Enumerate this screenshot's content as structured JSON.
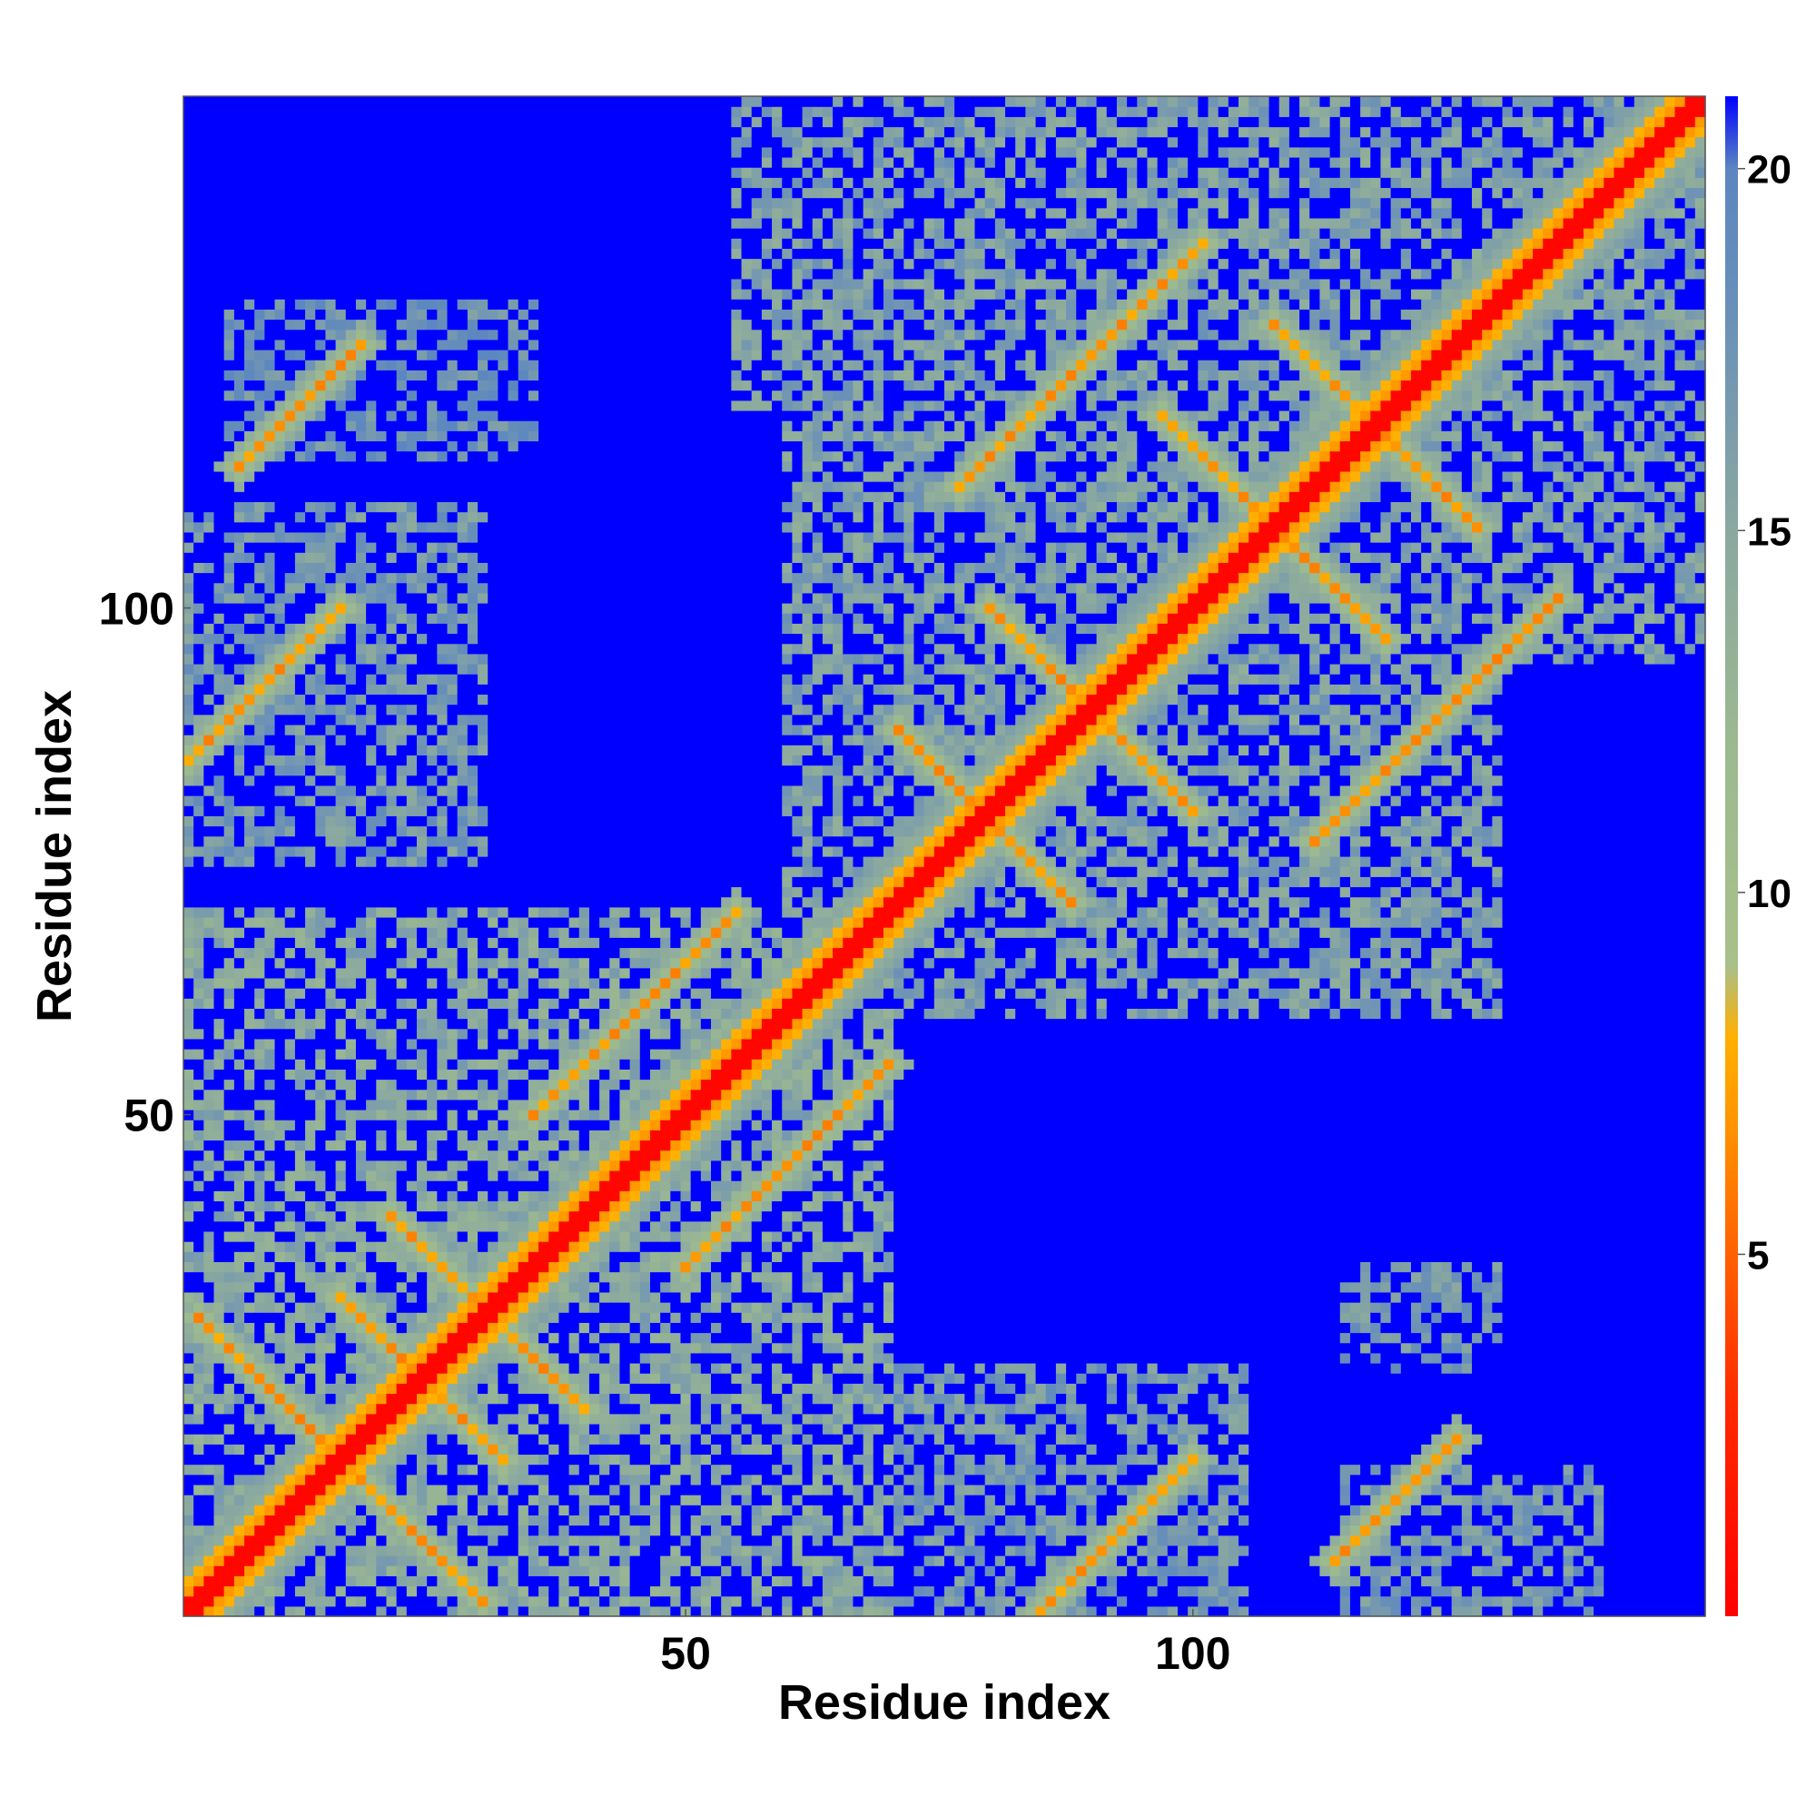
{
  "chart_data": {
    "type": "heatmap",
    "title": "",
    "xlabel": "Residue index",
    "ylabel": "Residue index",
    "xlim": [
      1,
      150
    ],
    "ylim": [
      1,
      150
    ],
    "x_ticks": [
      50,
      100
    ],
    "y_ticks": [
      50,
      100
    ],
    "colorbar": {
      "ticks": [
        5,
        10,
        15,
        20
      ],
      "range": [
        0,
        21
      ],
      "stops": [
        {
          "value": 0,
          "color": "#ff0000"
        },
        {
          "value": 3,
          "color": "#ff2a00"
        },
        {
          "value": 5,
          "color": "#ff6000"
        },
        {
          "value": 7,
          "color": "#ff9900"
        },
        {
          "value": 8,
          "color": "#ffb000"
        },
        {
          "value": 9,
          "color": "#a8c08a"
        },
        {
          "value": 12,
          "color": "#9cb990"
        },
        {
          "value": 15,
          "color": "#8aa8a0"
        },
        {
          "value": 18,
          "color": "#6a90b8"
        },
        {
          "value": 20,
          "color": "#5b86c0"
        },
        {
          "value": 21,
          "color": "#0000ff"
        }
      ]
    },
    "cap_value": 21,
    "description_free": true,
    "diagonal_band": {
      "zero_width": 1,
      "orange_width": 3,
      "green_width": 6
    },
    "contact_arms": [
      {
        "a": 27,
        "b": 34,
        "dir": "anti",
        "len": 6
      },
      {
        "a": 10,
        "b": 22,
        "dir": "anti",
        "len": 8
      },
      {
        "a": 22,
        "b": 26,
        "dir": "anti",
        "len": 6
      },
      {
        "a": 45,
        "b": 60,
        "dir": "parallel",
        "len": 10
      },
      {
        "a": 77,
        "b": 82,
        "dir": "anti",
        "len": 6
      },
      {
        "a": 86,
        "b": 94,
        "dir": "anti",
        "len": 6
      },
      {
        "a": 104,
        "b": 112,
        "dir": "anti",
        "len": 7
      },
      {
        "a": 114,
        "b": 122,
        "dir": "anti",
        "len": 6
      },
      {
        "a": 89,
        "b": 124,
        "dir": "parallel",
        "len": 12
      },
      {
        "a": 8,
        "b": 92,
        "dir": "parallel",
        "len": 8
      },
      {
        "a": 12,
        "b": 120,
        "dir": "parallel",
        "len": 6
      }
    ],
    "domains": [
      {
        "x0": 1,
        "x1": 70,
        "y0": 1,
        "y1": 70,
        "level": 15
      },
      {
        "x0": 60,
        "x1": 130,
        "y0": 60,
        "y1": 130,
        "level": 16
      },
      {
        "x0": 95,
        "x1": 150,
        "y0": 95,
        "y1": 150,
        "level": 16
      },
      {
        "x0": 70,
        "x1": 105,
        "y0": 1,
        "y1": 25,
        "level": 17
      },
      {
        "x0": 115,
        "x1": 140,
        "y0": 1,
        "y1": 15,
        "level": 17
      },
      {
        "x0": 115,
        "x1": 130,
        "y0": 25,
        "y1": 35,
        "level": 17
      },
      {
        "x0": 1,
        "x1": 30,
        "y0": 75,
        "y1": 110,
        "level": 17
      },
      {
        "x0": 55,
        "x1": 105,
        "y0": 120,
        "y1": 150,
        "level": 16
      },
      {
        "x0": 5,
        "x1": 35,
        "y0": 115,
        "y1": 130,
        "level": 18
      }
    ]
  }
}
